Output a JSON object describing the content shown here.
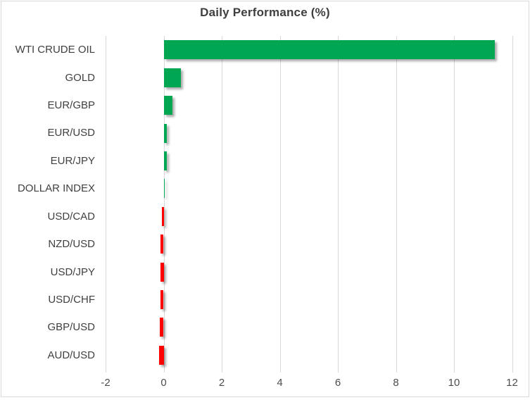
{
  "chart_data": {
    "type": "bar",
    "orientation": "horizontal",
    "title": "Daily Performance (%)",
    "categories": [
      "WTI CRUDE OIL",
      "GOLD",
      "EUR/GBP",
      "EUR/USD",
      "EUR/JPY",
      "DOLLAR INDEX",
      "USD/CAD",
      "NZD/USD",
      "USD/JPY",
      "USD/CHF",
      "GBP/USD",
      "AUD/USD"
    ],
    "values": [
      11.4,
      0.6,
      0.3,
      0.12,
      0.1,
      0.0,
      -0.06,
      -0.1,
      -0.11,
      -0.12,
      -0.14,
      -0.17
    ],
    "x_ticks": [
      -2,
      0,
      2,
      4,
      6,
      8,
      10,
      12
    ],
    "xlim": [
      -2,
      12.57
    ],
    "grid": true,
    "legend": "none",
    "value_labels_shown": false,
    "colors": {
      "positive": "#00a651",
      "negative": "#fe0000",
      "gridline": "#d9d9d9",
      "border": "#d9d9d9",
      "title": "#3f3f3f",
      "category_label": "#404040",
      "tick_label": "#4d4d4d",
      "background": "#ffffff"
    }
  }
}
